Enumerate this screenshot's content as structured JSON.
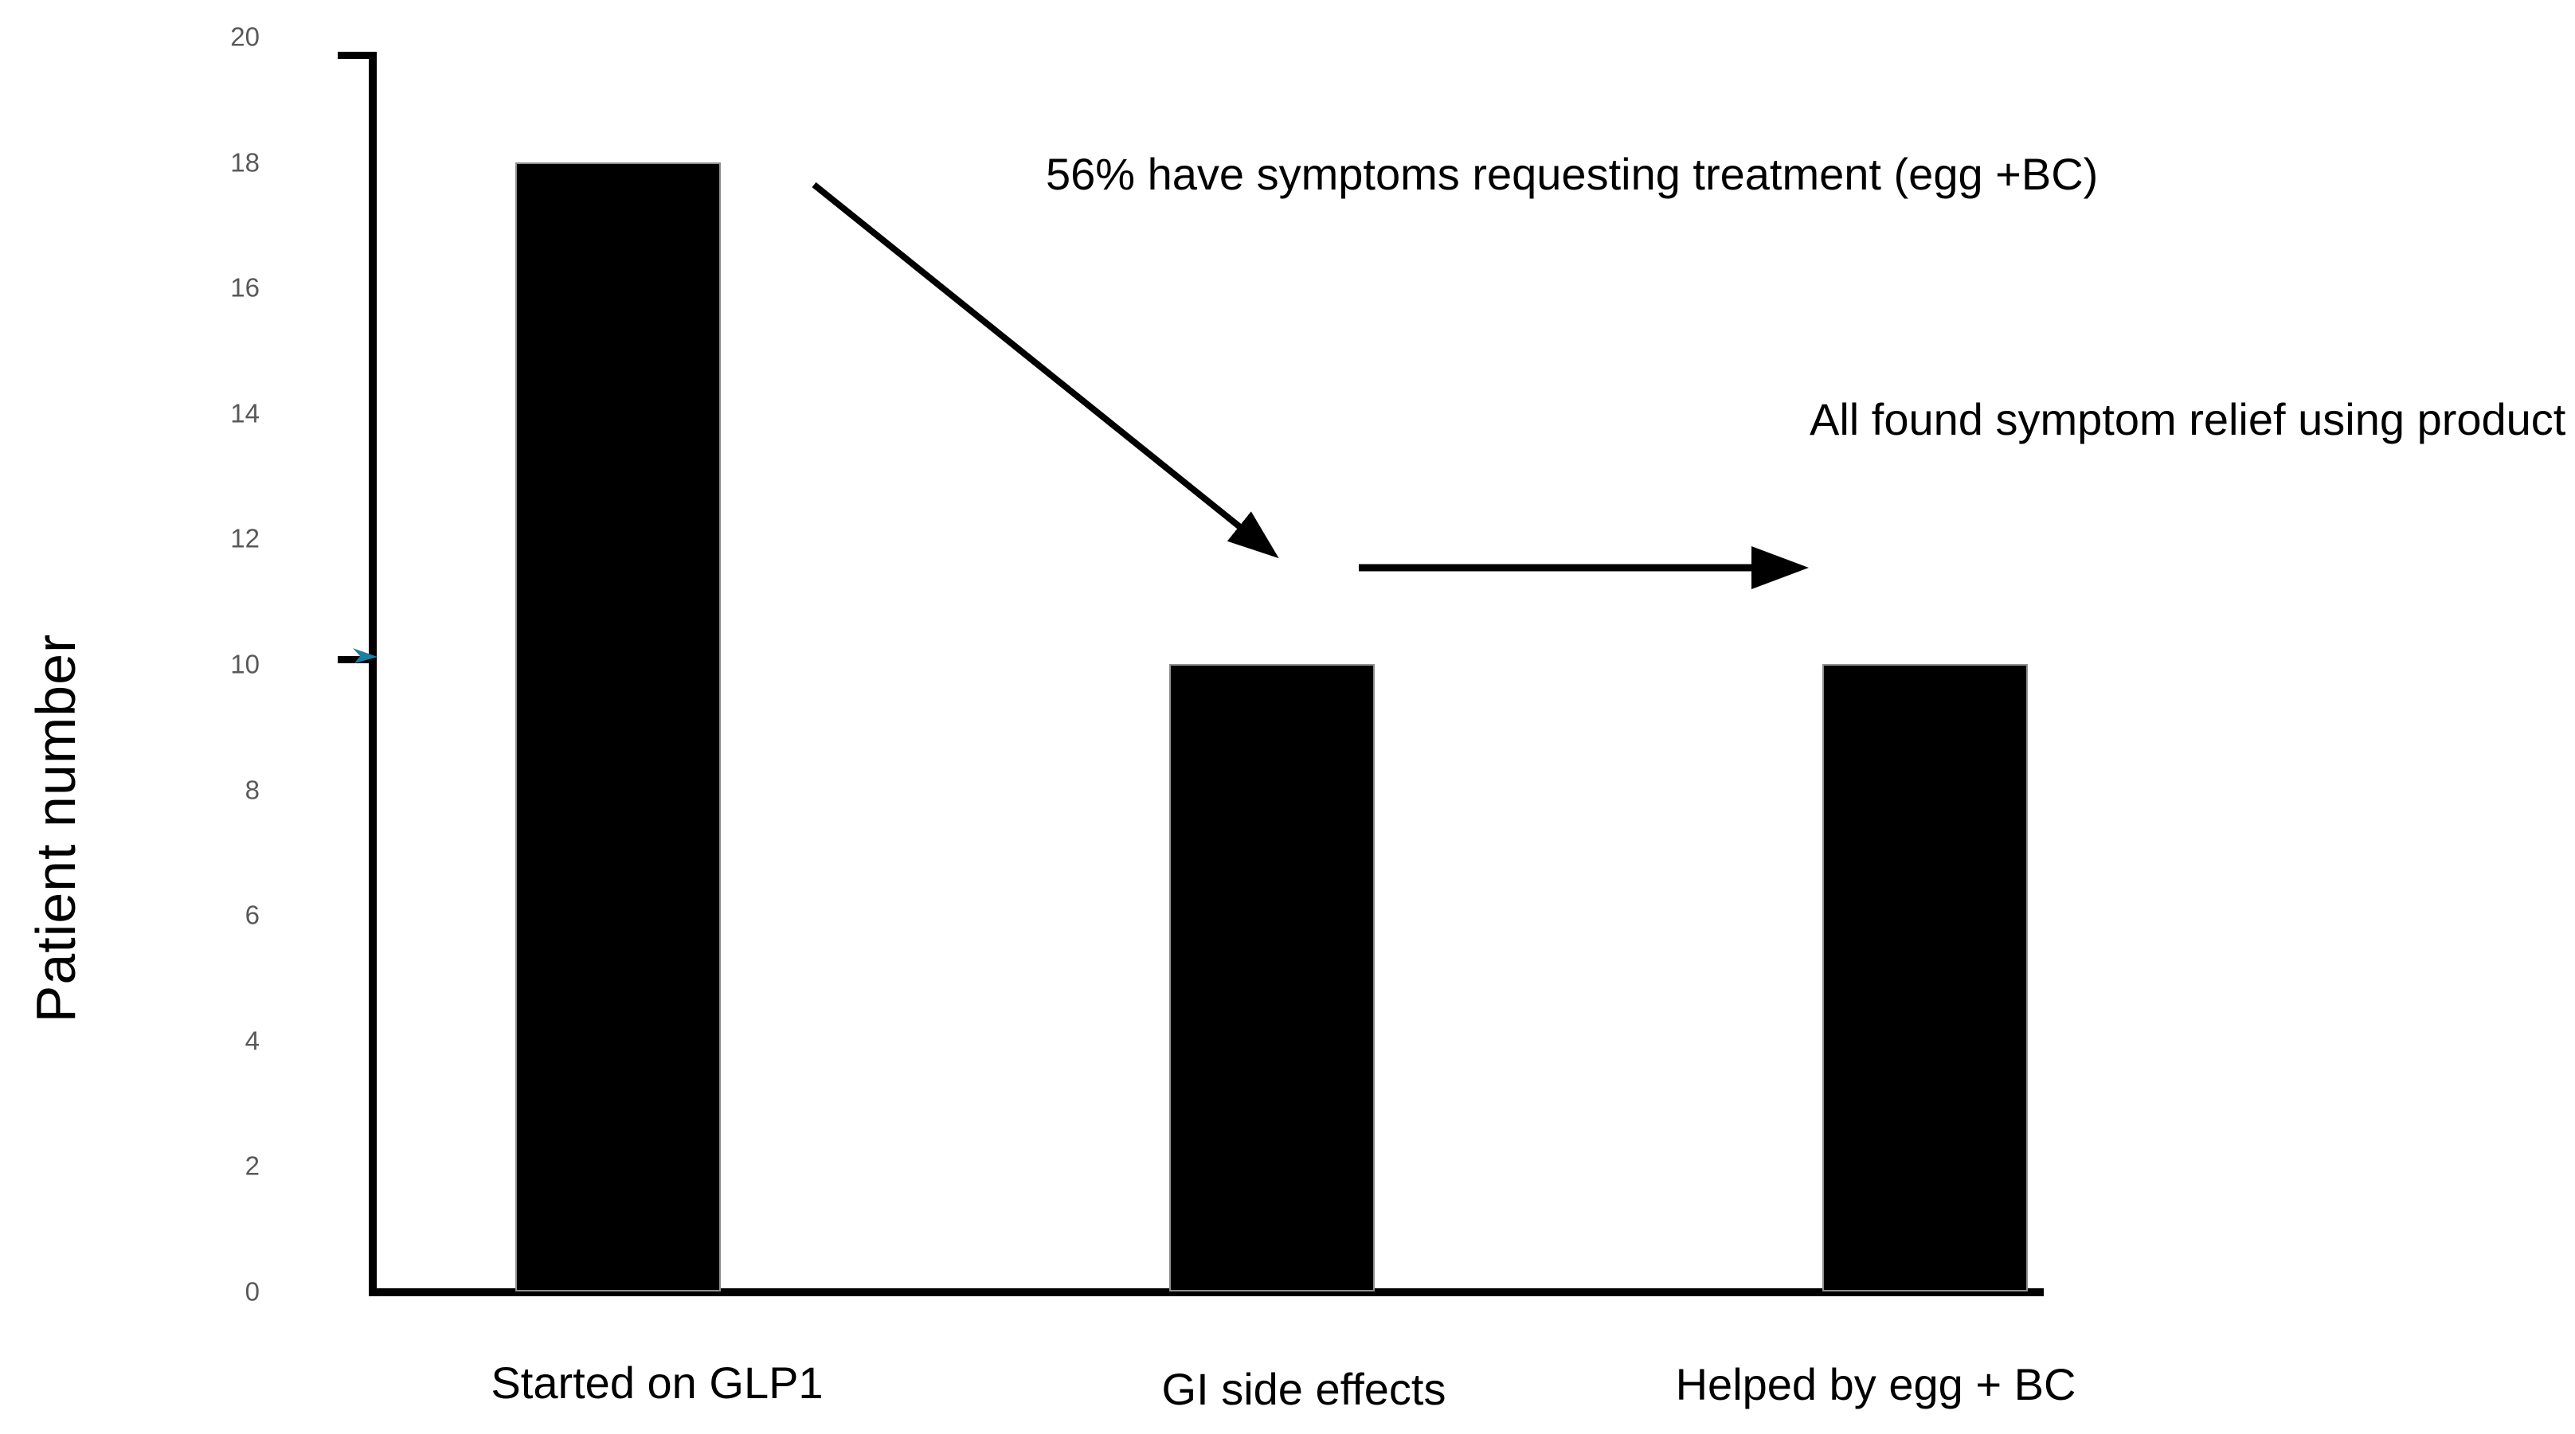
{
  "chart_data": {
    "type": "bar",
    "title": "",
    "categories": [
      "Started on GLP1",
      "GI side effects",
      "Helped by egg + BC"
    ],
    "values": [
      18,
      10,
      10
    ],
    "xlabel": "",
    "ylabel": "Patient number",
    "ylim": [
      0,
      20
    ],
    "yticks": [
      0,
      2,
      4,
      6,
      8,
      10,
      12,
      14,
      16,
      18,
      20
    ],
    "grid": false,
    "legend": "none",
    "bar_color": "#000000",
    "annotations": [
      {
        "text": "56% have symptoms requesting treatment (egg +BC)",
        "arrow": "diagonal-down-right"
      },
      {
        "text": "All found symptom relief using product",
        "arrow": "horizontal-right"
      }
    ]
  },
  "colors": {
    "background": "#ffffff",
    "axis": "#000000",
    "tick_label": "#595959",
    "bar_fill": "#000000",
    "bar_outline": "#8f8f8f",
    "text": "#000000",
    "ten_marker_arrow": "#1b7fa3"
  }
}
